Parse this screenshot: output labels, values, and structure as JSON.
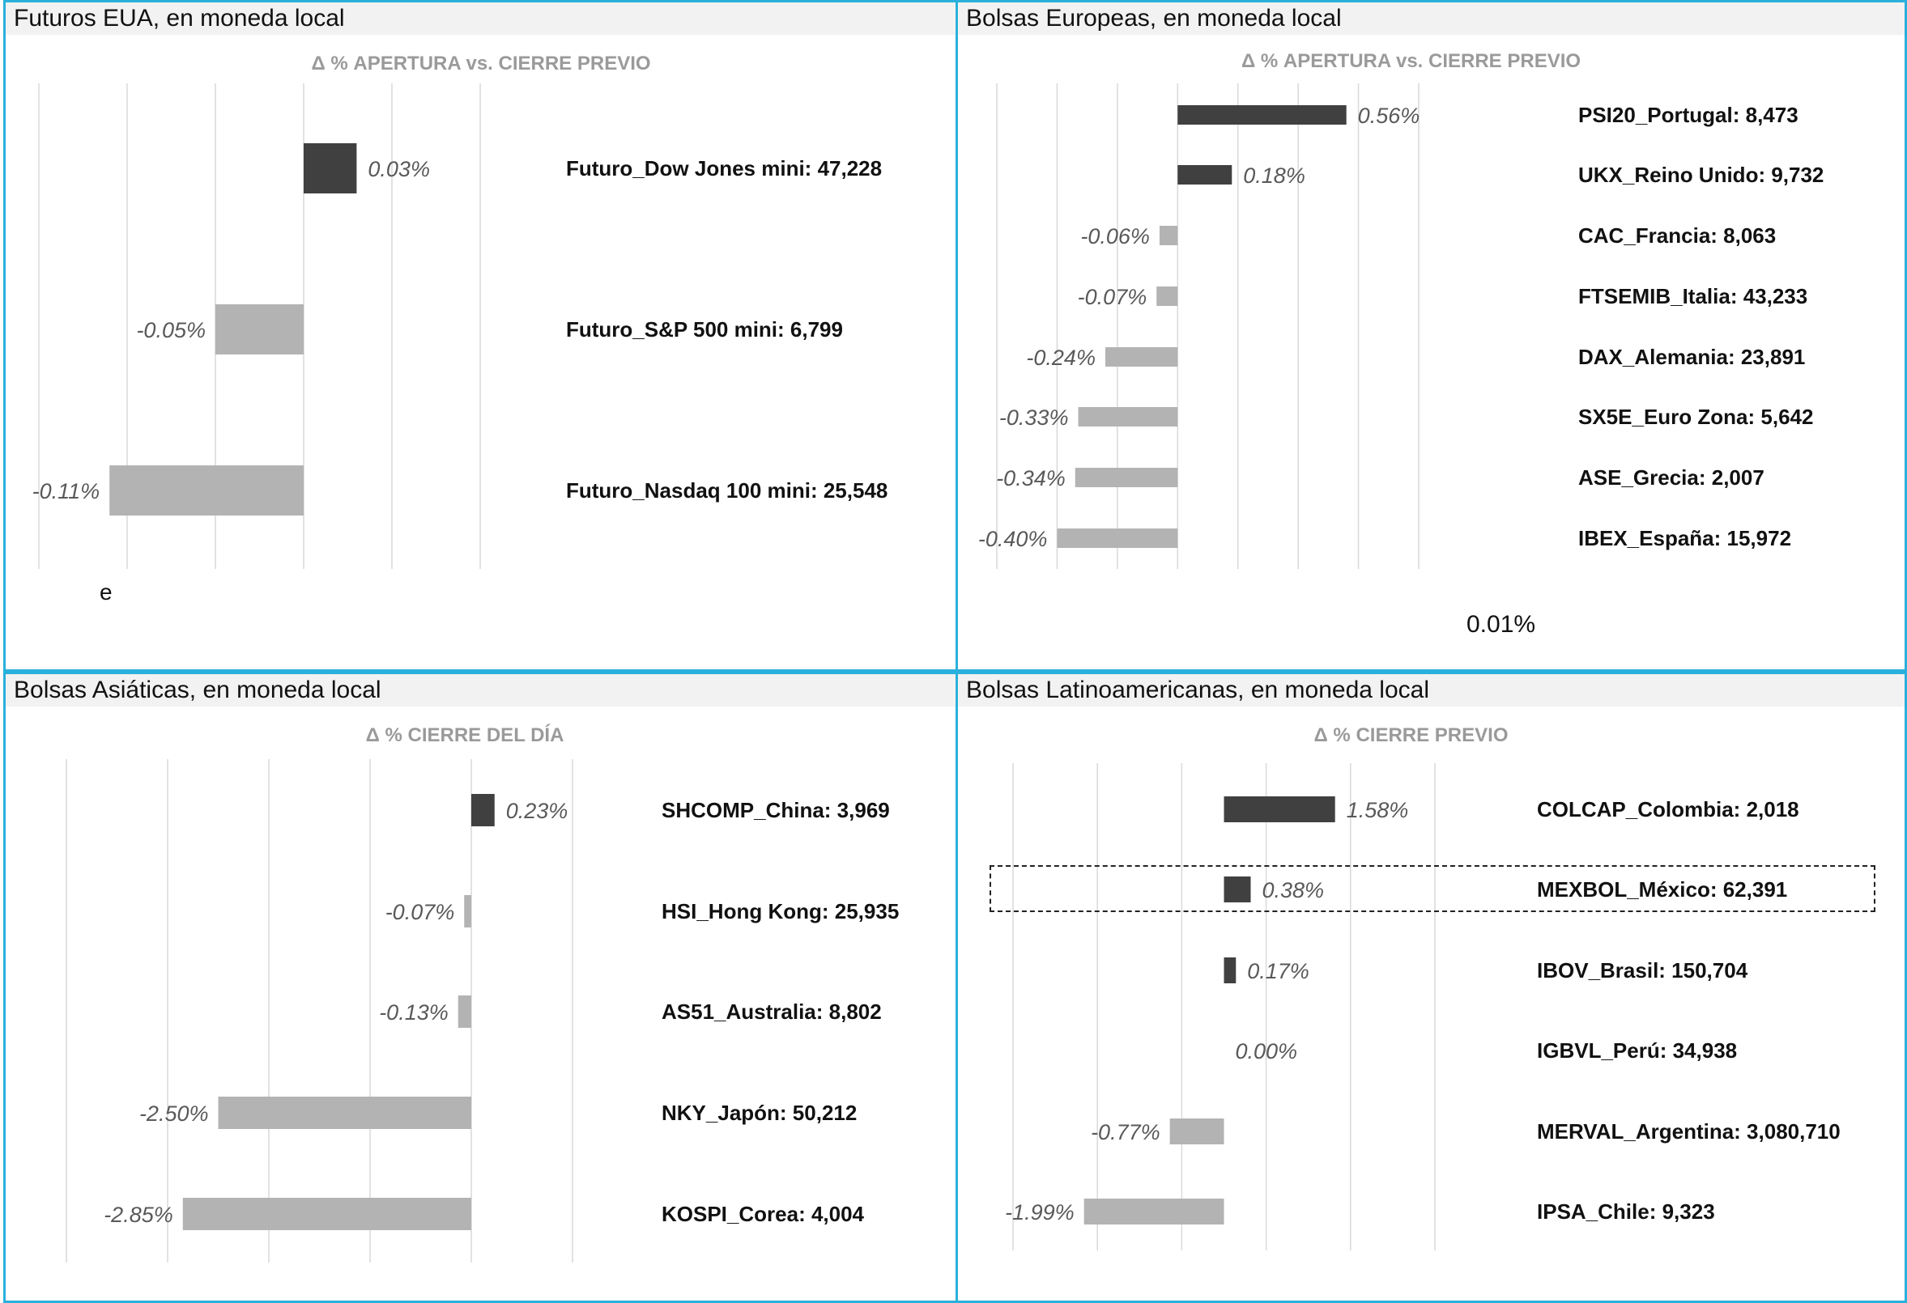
{
  "colors": {
    "frame": "#2ab0dc",
    "header_bg": "#f2f2f2",
    "positive_bar": "#404040",
    "negative_bar": "#b3b3b3",
    "gridline": "#d9d9d9",
    "subtitle": "#9a9a9a"
  },
  "panels": {
    "us_futures": {
      "header": "Futuros EUA, en moneda local",
      "subtitle": "Δ % APERTURA vs. CIERRE PREVIO",
      "stray_text": "e"
    },
    "europe": {
      "header": "Bolsas Europeas, en moneda local",
      "subtitle": "Δ % APERTURA vs. CIERRE PREVIO",
      "stray_text": "0.01%"
    },
    "asia": {
      "header": "Bolsas Asiáticas, en moneda local",
      "subtitle": "Δ % CIERRE DEL DÍA"
    },
    "latam": {
      "header": "Bolsas Latinoamericanas, en moneda local",
      "subtitle": "Δ % CIERRE PREVIO"
    }
  },
  "chart_data": [
    {
      "id": "us_futures",
      "type": "bar",
      "orientation": "horizontal",
      "title": "Δ % APERTURA vs. CIERRE PREVIO",
      "xlim": [
        -0.15,
        0.1
      ],
      "grid": true,
      "categories": [
        "Futuro_Dow Jones mini: 47,228",
        "Futuro_S&P 500 mini: 6,799",
        "Futuro_Nasdaq 100 mini: 25,548"
      ],
      "values": [
        0.03,
        -0.05,
        -0.11
      ],
      "value_labels": [
        "0.03%",
        "-0.05%",
        "-0.11%"
      ]
    },
    {
      "id": "europe",
      "type": "bar",
      "orientation": "horizontal",
      "title": "Δ % APERTURA vs. CIERRE PREVIO",
      "xlim": [
        -0.6,
        0.8
      ],
      "grid": true,
      "categories": [
        "PSI20_Portugal: 8,473",
        "UKX_Reino Unido: 9,732",
        "CAC_Francia: 8,063",
        "FTSEMIB_Italia: 43,233",
        "DAX_Alemania: 23,891",
        "SX5E_Euro Zona: 5,642",
        "ASE_Grecia: 2,007",
        "IBEX_España: 15,972"
      ],
      "values": [
        0.56,
        0.18,
        -0.06,
        -0.07,
        -0.24,
        -0.33,
        -0.34,
        -0.4
      ],
      "value_labels": [
        "0.56%",
        "0.18%",
        "-0.06%",
        "-0.07%",
        "-0.24%",
        "-0.33%",
        "-0.34%",
        "-0.40%"
      ]
    },
    {
      "id": "asia",
      "type": "bar",
      "orientation": "horizontal",
      "title": "Δ % CIERRE DEL DÍA",
      "xlim": [
        -4.0,
        1.0
      ],
      "grid": true,
      "categories": [
        "SHCOMP_China: 3,969",
        "HSI_Hong Kong: 25,935",
        "AS51_Australia: 8,802",
        "NKY_Japón: 50,212",
        "KOSPI_Corea: 4,004"
      ],
      "values": [
        0.23,
        -0.07,
        -0.13,
        -2.5,
        -2.85
      ],
      "value_labels": [
        "0.23%",
        "-0.07%",
        "-0.13%",
        "-2.50%",
        "-2.85%"
      ]
    },
    {
      "id": "latam",
      "type": "bar",
      "orientation": "horizontal",
      "title": "Δ % CIERRE PREVIO",
      "xlim": [
        -3.0,
        3.0
      ],
      "grid": true,
      "categories": [
        "COLCAP_Colombia: 2,018",
        "MEXBOL_México: 62,391",
        "IBOV_Brasil: 150,704",
        "IGBVL_Perú: 34,938",
        "MERVAL_Argentina: 3,080,710",
        "IPSA_Chile: 9,323"
      ],
      "values": [
        1.58,
        0.38,
        0.17,
        0.0,
        -0.77,
        -1.99
      ],
      "value_labels": [
        "1.58%",
        "0.38%",
        "0.17%",
        "0.00%",
        "-0.77%",
        "-1.99%"
      ],
      "highlighted_category": "MEXBOL_México: 62,391"
    }
  ]
}
